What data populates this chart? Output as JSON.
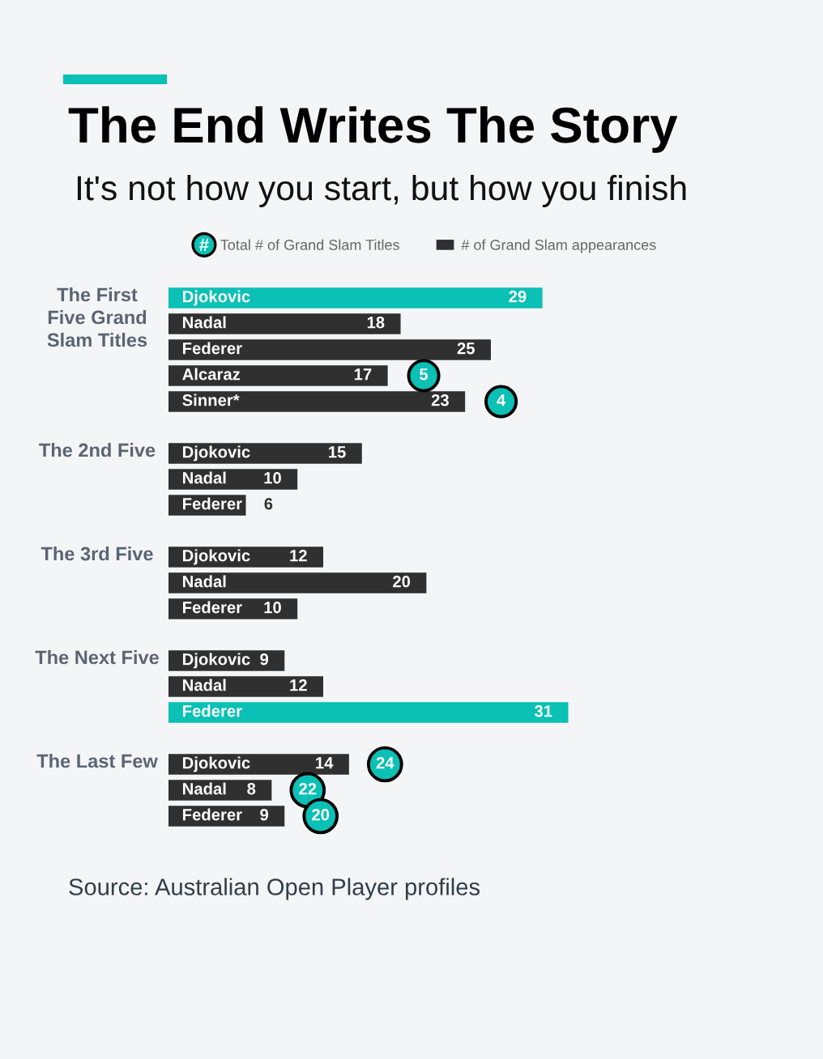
{
  "chart_data": [
    {
      "type": "bar",
      "orientation": "horizontal",
      "title": "The End Writes The Story",
      "subtitle": "It's not how you start, but how you finish",
      "ylabel": "The First\nFive Grand\nSlam Titles",
      "categories": [
        "Djokovic",
        "Nadal",
        "Federer",
        "Alcaraz",
        "Sinner*"
      ],
      "series": [
        {
          "name": "Total # of Grand Slam Titles",
          "type": "scatter",
          "color": "#0bc0b4",
          "values": [
            null,
            null,
            null,
            null,
            null
          ]
        },
        {
          "name": "# of Grand Slam appearances",
          "color": "#303030",
          "colors": [
            "#0bc0b4",
            "#303030",
            "#303030",
            "#303030",
            "#303030"
          ],
          "values": [
            29,
            18,
            25,
            17,
            23
          ]
        }
      ],
      "marker": "circle",
      "data_labels": true,
      "tick_labels": "y",
      "legend": "top",
      "annotations": [
        {
          "text": "5",
          "x": 17,
          "y": "Alcaraz"
        },
        {
          "text": "4",
          "x": 23,
          "y": "Sinner*"
        }
      ]
    },
    {
      "type": "bar",
      "orientation": "horizontal",
      "ylabel": "The 2nd Five",
      "categories": [
        "Djokovic",
        "Nadal",
        "Federer"
      ],
      "series": [
        {
          "color": "#303030",
          "values": [
            15,
            10,
            6
          ]
        }
      ],
      "data_labels": true,
      "tick_labels": "y"
    },
    {
      "type": "bar",
      "orientation": "horizontal",
      "ylabel": "The 3rd Five",
      "categories": [
        "Djokovic",
        "Nadal",
        "Federer"
      ],
      "series": [
        {
          "color": "#303030",
          "values": [
            12,
            20,
            10
          ]
        }
      ],
      "data_labels": true,
      "tick_labels": "y"
    },
    {
      "type": "bar",
      "orientation": "horizontal",
      "ylabel": "The Next Five",
      "categories": [
        "Djokovic",
        "Nadal",
        "Federer"
      ],
      "series": [
        {
          "colors": [
            "#303030",
            "#303030",
            "#0bc0b4"
          ],
          "values": [
            9,
            12,
            31
          ]
        }
      ],
      "data_labels": true,
      "tick_labels": "y"
    },
    {
      "type": "bar",
      "orientation": "horizontal",
      "ylabel": "The Last Few",
      "categories": [
        "Djokovic",
        "Nadal",
        "Federer"
      ],
      "series": [
        {
          "color": "#303030",
          "values": [
            14,
            8,
            9
          ]
        }
      ],
      "marker": "circle",
      "data_labels": true,
      "tick_labels": "y",
      "annotations": [
        {
          "text": "24",
          "x": 14,
          "y": "Djokovic"
        },
        {
          "text": "22",
          "x": 8,
          "y": "Nadal"
        },
        {
          "text": "20",
          "x": 9,
          "y": "Federer"
        },
        "Source: Australian Open Player profiles"
      ]
    }
  ]
}
